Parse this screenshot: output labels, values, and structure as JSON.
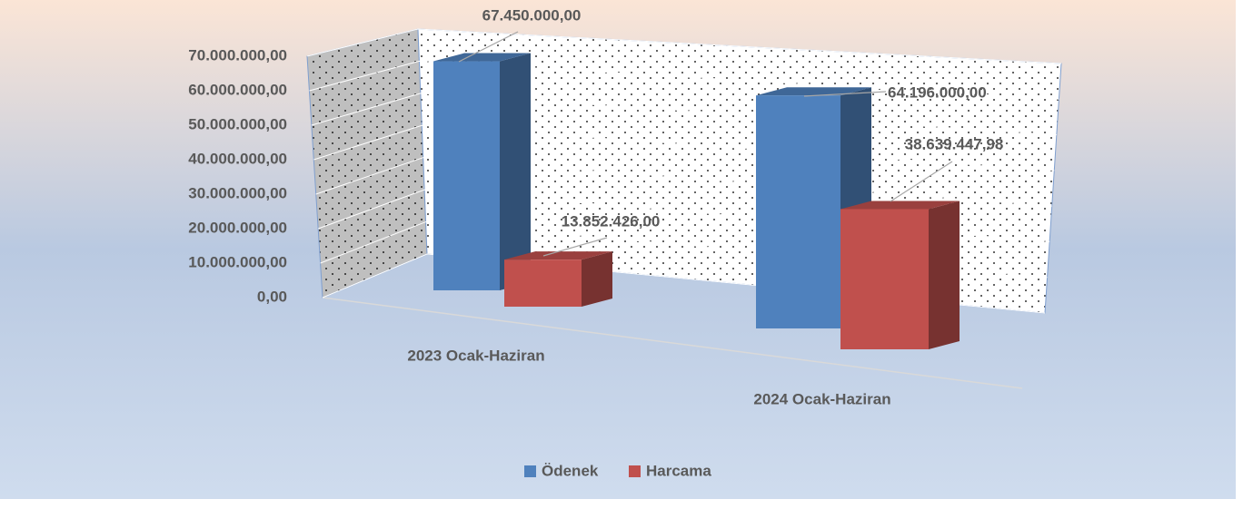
{
  "chart_data": {
    "type": "bar3d",
    "categories": [
      "2023 Ocak-Haziran",
      "2024 Ocak-Haziran"
    ],
    "series": [
      {
        "name": "Ödenek",
        "color": "#4f81bd",
        "values": [
          67450000,
          64196000
        ],
        "value_labels": [
          "67.450.000,00",
          "64.196.000,00"
        ]
      },
      {
        "name": "Harcama",
        "color": "#c0504d",
        "values": [
          13852426,
          38639447.98
        ],
        "value_labels": [
          "13.852.426,00",
          "38.639.447,98"
        ]
      }
    ],
    "ylim": [
      0,
      70000000
    ],
    "yticks": [
      {
        "value": 0,
        "label": "0,00"
      },
      {
        "value": 10000000,
        "label": "10.000.000,00"
      },
      {
        "value": 20000000,
        "label": "20.000.000,00"
      },
      {
        "value": 30000000,
        "label": "30.000.000,00"
      },
      {
        "value": 40000000,
        "label": "40.000.000,00"
      },
      {
        "value": 50000000,
        "label": "50.000.000,00"
      },
      {
        "value": 60000000,
        "label": "60.000.000,00"
      },
      {
        "value": 70000000,
        "label": "70.000.000,00"
      }
    ],
    "grid": true,
    "legend": "bottom"
  }
}
